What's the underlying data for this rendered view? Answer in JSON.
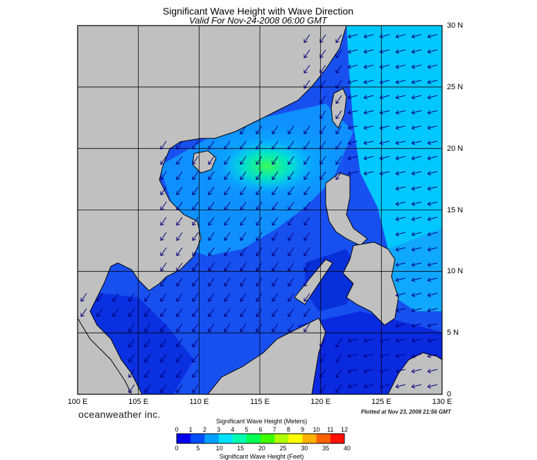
{
  "header": {
    "title": "Significant Wave Height with Wave Direction",
    "subtitle": "Valid For Nov-24-2008 06:00 GMT"
  },
  "map": {
    "longitude_labels": [
      "100 E",
      "105 E",
      "110 E",
      "115 E",
      "120 E",
      "125 E",
      "130 E"
    ],
    "latitude_labels": [
      "30 N",
      "25 N",
      "20 N",
      "15 N",
      "10 N",
      "5 N",
      "0"
    ],
    "land_color": "#c0c0c0",
    "coast_color": "#000000",
    "grid_color": "#000000",
    "arrow_color": "#00007a"
  },
  "footer": {
    "brand": "oceanweather inc.",
    "plotted": "Plotted at Nov 23, 2008 21:56 GMT"
  },
  "colorbar": {
    "meters_title": "Significant Wave Height (Meters)",
    "meters_ticks": [
      "0",
      "1",
      "2",
      "3",
      "4",
      "5",
      "6",
      "7",
      "8",
      "9",
      "10",
      "11",
      "12"
    ],
    "feet_title": "Significant Wave Height (Feet)",
    "feet_ticks": [
      "0",
      "5",
      "10",
      "15",
      "20",
      "25",
      "30",
      "35",
      "40"
    ],
    "colors": [
      "#0000ee",
      "#0050ff",
      "#00a0ff",
      "#00e0ff",
      "#00ffb0",
      "#00ff50",
      "#40ff00",
      "#b0ff00",
      "#ffff00",
      "#ffb000",
      "#ff6000",
      "#ff1000"
    ]
  }
}
